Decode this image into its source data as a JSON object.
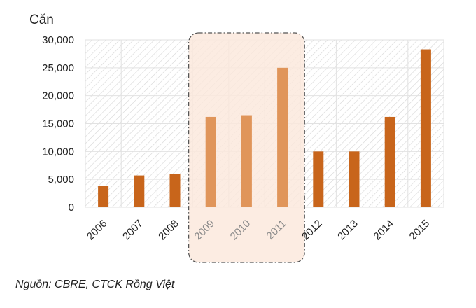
{
  "chart_data": {
    "type": "bar",
    "unit_label": "Căn",
    "categories": [
      "2006",
      "2007",
      "2008",
      "2009",
      "2010",
      "2011",
      "2012",
      "2013",
      "2014",
      "2015"
    ],
    "values": [
      3800,
      5700,
      5900,
      16200,
      16500,
      25000,
      10000,
      10000,
      16200,
      28300
    ],
    "highlighted_categories": [
      "2009",
      "2010",
      "2011"
    ],
    "ylim": [
      0,
      30000
    ],
    "yticks": [
      0,
      5000,
      10000,
      15000,
      20000,
      25000,
      30000
    ],
    "ytick_labels": [
      "0",
      "5,000",
      "10,000",
      "15,000",
      "20,000",
      "25,000",
      "30,000"
    ],
    "grid": true,
    "colors": {
      "bar": "#c8651b",
      "bar_highlight": "#e0955a",
      "highlight_background": "#fbe8dc",
      "highlight_border": "#555555",
      "hatch": "#d6d6d6"
    }
  },
  "source_note": "Nguồn: CBRE, CTCK Rồng Việt"
}
